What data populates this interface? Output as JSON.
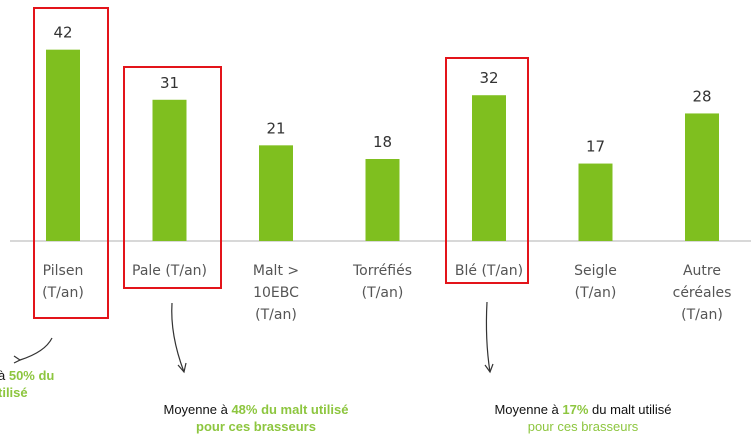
{
  "chart_data": {
    "type": "bar",
    "categories": [
      [
        "Pilsen",
        "(T/an)"
      ],
      [
        "Pale (T/an)"
      ],
      [
        "Malt >",
        "10EBC",
        "(T/an)"
      ],
      [
        "Torréfiés",
        "(T/an)"
      ],
      [
        "Blé (T/an)"
      ],
      [
        "Seigle",
        "(T/an)"
      ],
      [
        "Autre",
        "céréales",
        "(T/an)"
      ]
    ],
    "values": [
      42,
      31,
      21,
      18,
      32,
      17,
      28
    ],
    "color": "#7fbf1f",
    "ylim": [
      0,
      45
    ],
    "annotations": [
      {
        "lines": [
          [
            {
              "text": "à ",
              "style": "plain"
            },
            {
              "text": "50% du",
              "style": "bold"
            }
          ],
          [
            {
              "text": "tilisé",
              "style": "bold"
            }
          ]
        ]
      },
      {
        "lines": [
          [
            {
              "text": "Moyenne à ",
              "style": "plain"
            },
            {
              "text": "48% du malt utilisé",
              "style": "bold"
            }
          ],
          [
            {
              "text": "pour ces brasseurs",
              "style": "bold"
            }
          ]
        ]
      },
      {
        "lines": [
          [
            {
              "text": "Moyenne à ",
              "style": "plain"
            },
            {
              "text": "17%",
              "style": "bold"
            },
            {
              "text": " du malt utilisé",
              "style": "plain"
            }
          ],
          [
            {
              "text": "pour ces brasseurs",
              "style": "green"
            }
          ]
        ]
      }
    ]
  }
}
